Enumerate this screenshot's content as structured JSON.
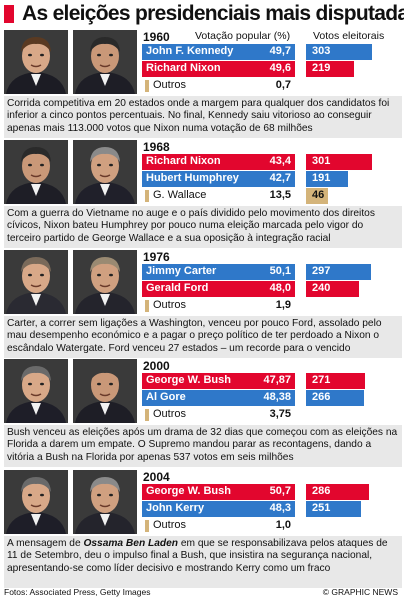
{
  "title": "As eleições presidenciais mais disputadas",
  "column_headers": {
    "popular": "Votação popular (%)",
    "electoral": "Votos eleitorais"
  },
  "colors": {
    "republican": "#e2062e",
    "democrat": "#2f78c9",
    "other": "#d4b47a",
    "caption_bg": "#e8e8e8"
  },
  "footer": {
    "source": "Fotos: Associated Press, Getty Images",
    "credit": "© GRAPHIC NEWS"
  },
  "chart_data": {
    "type": "bar",
    "title": "As eleições presidenciais mais disputadas",
    "popular_axis_max": 55,
    "electoral_axis_max": 320,
    "elections": [
      {
        "year": "1960",
        "candidates": [
          {
            "name": "John F. Kennedy",
            "popular": 49.7,
            "popular_label": "49,7",
            "electoral": 303,
            "color": "#2f78c9"
          },
          {
            "name": "Richard Nixon",
            "popular": 49.6,
            "popular_label": "49,6",
            "electoral": 219,
            "color": "#e2062e"
          }
        ],
        "other": {
          "name": "Outros",
          "popular": 0.7,
          "popular_label": "0,7"
        },
        "caption": "Corrida competitiva em 20 estados onde a margem para qualquer dos candidatos foi inferior a cinco pontos percentuais. No final, Kennedy saiu vitorioso ao conseguir apenas mais 113.000 votos que Nixon numa votação de 68 milhões"
      },
      {
        "year": "1968",
        "candidates": [
          {
            "name": "Richard Nixon",
            "popular": 43.4,
            "popular_label": "43,4",
            "electoral": 301,
            "color": "#e2062e"
          },
          {
            "name": "Hubert Humphrey",
            "popular": 42.7,
            "popular_label": "42,7",
            "electoral": 191,
            "color": "#2f78c9"
          }
        ],
        "other": {
          "name": "G. Wallace",
          "popular": 13.5,
          "popular_label": "13,5",
          "electoral": 46
        },
        "caption": "Com a guerra do Vietname no auge e o país dividido pelo movimento dos direitos cívicos, Nixon bateu Humphrey por pouco numa eleição marcada pelo vigor do terceiro partido de George Wallace e a sua oposição à integração racial"
      },
      {
        "year": "1976",
        "candidates": [
          {
            "name": "Jimmy Carter",
            "popular": 50.1,
            "popular_label": "50,1",
            "electoral": 297,
            "color": "#2f78c9"
          },
          {
            "name": "Gerald Ford",
            "popular": 48.0,
            "popular_label": "48,0",
            "electoral": 240,
            "color": "#e2062e"
          }
        ],
        "other": {
          "name": "Outros",
          "popular": 1.9,
          "popular_label": "1,9"
        },
        "caption": "Carter, a correr sem ligações a Washington, venceu por pouco Ford, assolado pelo mau desempenho económico e a pagar o preço político de ter perdoado a Nixon o escândalo Watergate. Ford venceu 27 estados – um recorde para o vencido"
      },
      {
        "year": "2000",
        "candidates": [
          {
            "name": "George W. Bush",
            "popular": 47.87,
            "popular_label": "47,87",
            "electoral": 271,
            "color": "#e2062e"
          },
          {
            "name": "Al Gore",
            "popular": 48.38,
            "popular_label": "48,38",
            "electoral": 266,
            "color": "#2f78c9"
          }
        ],
        "other": {
          "name": "Outros",
          "popular": 3.75,
          "popular_label": "3,75"
        },
        "caption": "Bush venceu as eleições após um drama de 32 dias que começou com as eleições na Florida a darem um empate. O Supremo mandou parar as recontagens, dando a vitória a Bush na Florida por apenas 537 votos em seis milhões"
      },
      {
        "year": "2004",
        "candidates": [
          {
            "name": "George W. Bush",
            "popular": 50.7,
            "popular_label": "50,7",
            "electoral": 286,
            "color": "#e2062e"
          },
          {
            "name": "John Kerry",
            "popular": 48.3,
            "popular_label": "48,3",
            "electoral": 251,
            "color": "#2f78c9"
          }
        ],
        "other": {
          "name": "Outros",
          "popular": 1.0,
          "popular_label": "1,0"
        },
        "caption_prefix": "A mensagem de ",
        "caption_em": "Ossama Ben Laden",
        "caption_rest": " em que se responsabilizava pelos ataques de 11 de Setembro, deu o impulso final a Bush, que insistira na segurança nacional, apresentando-se como líder decisivo e mostrando Kerry como um fraco"
      }
    ]
  }
}
